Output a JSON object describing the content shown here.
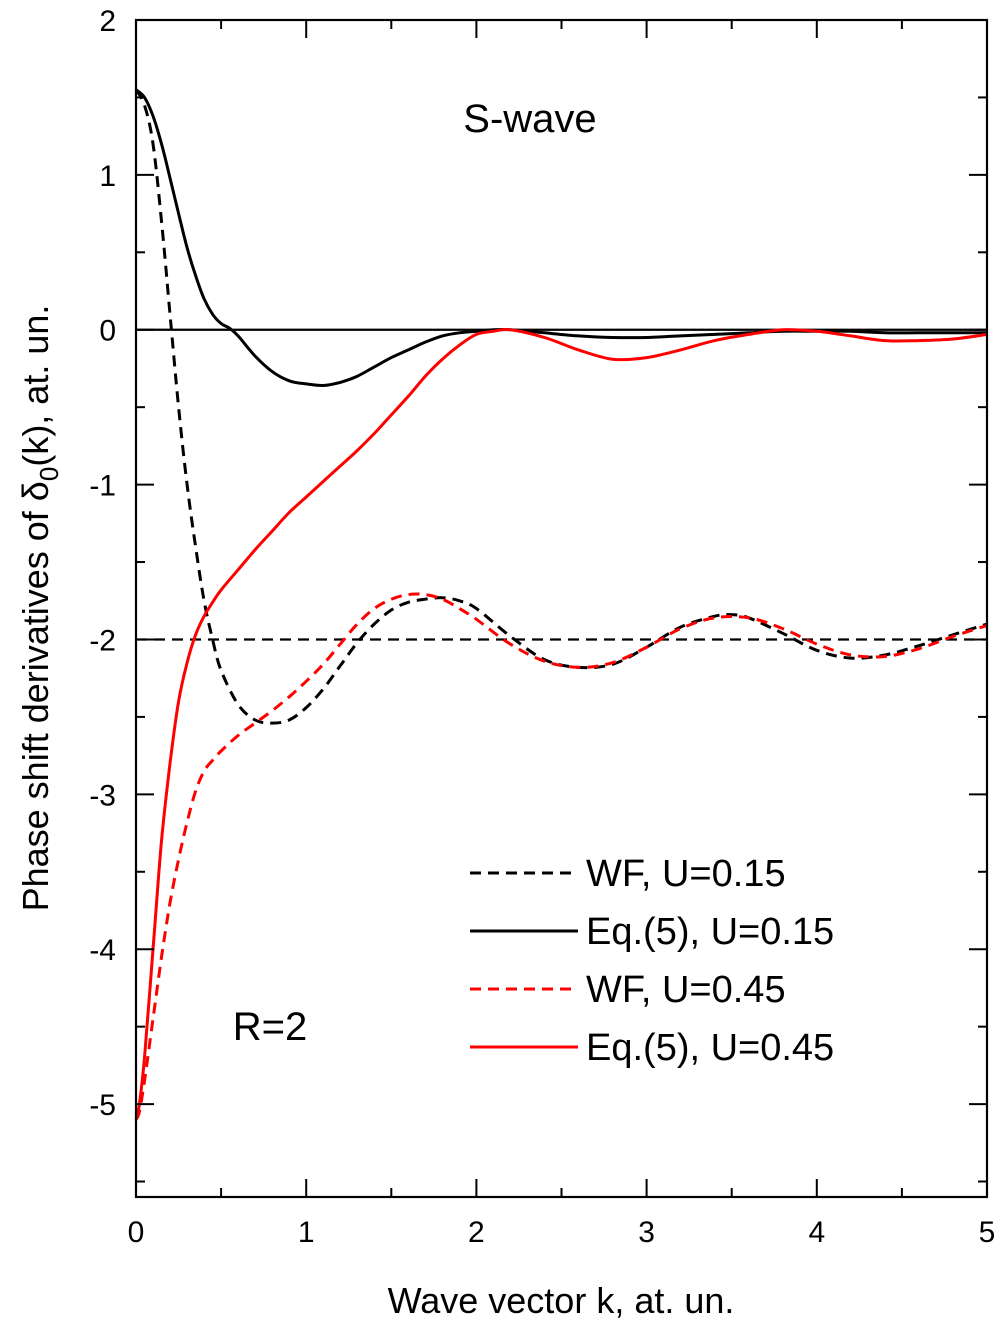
{
  "chart_data": {
    "type": "line",
    "xlabel": "Wave vector k, at. un.",
    "ylabel": "Phase shift derivatives of δ0(k), at. un.",
    "ylabel_parts": {
      "before": "Phase shift derivatives of δ",
      "subscript": "0",
      "after": "(k), at. un."
    },
    "xlim": [
      0,
      5
    ],
    "ylim": [
      -5.6,
      2
    ],
    "x_ticks": [
      0,
      1,
      2,
      3,
      4,
      5
    ],
    "x_tick_labels": [
      "0",
      "1",
      "2",
      "3",
      "4",
      "5"
    ],
    "y_ticks": [
      -5,
      -4,
      -3,
      -2,
      -1,
      0,
      1,
      2
    ],
    "y_tick_labels": [
      "-5",
      "-4",
      "-3",
      "-2",
      "-1",
      "0",
      "1",
      "2"
    ],
    "grid": false,
    "legend_position": "lower-right",
    "annotations": [
      "S-wave",
      "R=2"
    ],
    "reference_lines": [
      {
        "y": 0,
        "color": "#000000",
        "dash": "solid"
      },
      {
        "y": -2,
        "color": "#000000",
        "dash": "dashed"
      }
    ],
    "series": [
      {
        "name": "WF, U=0.15",
        "color": "#000000",
        "dash": "dashed",
        "x": [
          0,
          0.05,
          0.1,
          0.15,
          0.2,
          0.25,
          0.3,
          0.35,
          0.4,
          0.45,
          0.5,
          0.6,
          0.7,
          0.8,
          0.9,
          1.0,
          1.1,
          1.2,
          1.3,
          1.4,
          1.5,
          1.6,
          1.7,
          1.8,
          1.9,
          2.0,
          2.2,
          2.4,
          2.6,
          2.8,
          3.0,
          3.2,
          3.4,
          3.5,
          3.6,
          3.8,
          4.0,
          4.2,
          4.4,
          4.6,
          4.8,
          5.0
        ],
        "y": [
          1.55,
          1.45,
          1.2,
          0.7,
          0.1,
          -0.5,
          -1.0,
          -1.4,
          -1.75,
          -2.0,
          -2.2,
          -2.42,
          -2.52,
          -2.54,
          -2.52,
          -2.44,
          -2.32,
          -2.17,
          -2.02,
          -1.9,
          -1.81,
          -1.76,
          -1.74,
          -1.73,
          -1.75,
          -1.8,
          -1.98,
          -2.13,
          -2.18,
          -2.16,
          -2.05,
          -1.92,
          -1.85,
          -1.84,
          -1.86,
          -1.96,
          -2.07,
          -2.12,
          -2.1,
          -2.04,
          -1.97,
          -1.9
        ]
      },
      {
        "name": "Eq.(5), U=0.15",
        "color": "#000000",
        "dash": "solid",
        "x": [
          0,
          0.05,
          0.1,
          0.15,
          0.2,
          0.25,
          0.3,
          0.35,
          0.4,
          0.45,
          0.5,
          0.55,
          0.6,
          0.7,
          0.8,
          0.9,
          1.0,
          1.1,
          1.2,
          1.3,
          1.4,
          1.5,
          1.6,
          1.7,
          1.8,
          1.9,
          2.0,
          2.1,
          2.2,
          2.3,
          2.4,
          2.6,
          2.8,
          3.0,
          3.2,
          3.4,
          3.6,
          3.8,
          4.0,
          4.2,
          4.4,
          4.6,
          4.8,
          5.0
        ],
        "y": [
          1.55,
          1.5,
          1.38,
          1.2,
          0.98,
          0.75,
          0.53,
          0.35,
          0.2,
          0.1,
          0.04,
          0.01,
          -0.04,
          -0.17,
          -0.27,
          -0.33,
          -0.35,
          -0.36,
          -0.34,
          -0.3,
          -0.24,
          -0.18,
          -0.13,
          -0.08,
          -0.04,
          -0.02,
          -0.01,
          0.0,
          0.0,
          -0.01,
          -0.02,
          -0.04,
          -0.05,
          -0.05,
          -0.04,
          -0.03,
          -0.02,
          -0.01,
          -0.01,
          -0.01,
          -0.02,
          -0.02,
          -0.02,
          -0.02
        ]
      },
      {
        "name": "WF, U=0.45",
        "color": "#ff0000",
        "dash": "dashed",
        "x": [
          0,
          0.02,
          0.05,
          0.1,
          0.15,
          0.2,
          0.25,
          0.3,
          0.35,
          0.4,
          0.45,
          0.5,
          0.6,
          0.7,
          0.8,
          0.9,
          1.0,
          1.1,
          1.2,
          1.3,
          1.4,
          1.5,
          1.6,
          1.7,
          1.8,
          1.9,
          2.0,
          2.2,
          2.4,
          2.6,
          2.8,
          3.0,
          3.2,
          3.4,
          3.6,
          3.8,
          4.0,
          4.2,
          4.4,
          4.6,
          4.8,
          5.0
        ],
        "y": [
          -5.1,
          -5.05,
          -4.85,
          -4.45,
          -4.05,
          -3.7,
          -3.42,
          -3.18,
          -2.98,
          -2.85,
          -2.78,
          -2.72,
          -2.62,
          -2.54,
          -2.46,
          -2.37,
          -2.27,
          -2.16,
          -2.03,
          -1.9,
          -1.8,
          -1.74,
          -1.71,
          -1.71,
          -1.74,
          -1.8,
          -1.87,
          -2.03,
          -2.14,
          -2.18,
          -2.15,
          -2.05,
          -1.93,
          -1.86,
          -1.86,
          -1.93,
          -2.03,
          -2.1,
          -2.11,
          -2.06,
          -1.98,
          -1.91
        ]
      },
      {
        "name": "Eq.(5), U=0.45",
        "color": "#ff0000",
        "dash": "solid",
        "x": [
          0,
          0.02,
          0.05,
          0.1,
          0.15,
          0.2,
          0.25,
          0.3,
          0.35,
          0.4,
          0.45,
          0.5,
          0.6,
          0.7,
          0.8,
          0.9,
          1.0,
          1.1,
          1.2,
          1.3,
          1.4,
          1.5,
          1.6,
          1.7,
          1.8,
          1.9,
          2.0,
          2.1,
          2.2,
          2.4,
          2.6,
          2.8,
          3.0,
          3.2,
          3.4,
          3.6,
          3.8,
          4.0,
          4.2,
          4.4,
          4.6,
          4.8,
          5.0
        ],
        "y": [
          -5.1,
          -5.0,
          -4.7,
          -4.0,
          -3.3,
          -2.8,
          -2.4,
          -2.15,
          -1.97,
          -1.85,
          -1.76,
          -1.68,
          -1.55,
          -1.42,
          -1.3,
          -1.18,
          -1.08,
          -0.98,
          -0.88,
          -0.78,
          -0.67,
          -0.55,
          -0.43,
          -0.3,
          -0.19,
          -0.1,
          -0.03,
          -0.01,
          0.0,
          -0.05,
          -0.13,
          -0.19,
          -0.18,
          -0.13,
          -0.07,
          -0.03,
          0.0,
          -0.01,
          -0.04,
          -0.07,
          -0.07,
          -0.06,
          -0.03
        ]
      }
    ]
  }
}
